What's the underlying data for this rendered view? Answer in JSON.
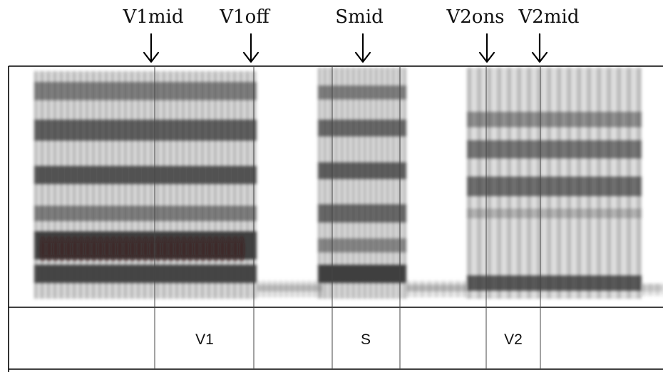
{
  "markers": [
    {
      "label": "V1mid"
    },
    {
      "label": "V1off"
    },
    {
      "label": "Smid"
    },
    {
      "label": "V2ons"
    },
    {
      "label": "V2mid"
    }
  ],
  "segments": [
    {
      "label": ""
    },
    {
      "label": "V1"
    },
    {
      "label": ""
    },
    {
      "label": "S"
    },
    {
      "label": ""
    },
    {
      "label": "V2"
    },
    {
      "label": ""
    }
  ],
  "colors": {
    "frame": "#000000",
    "divider": "#444444",
    "band": "#3a3a3a",
    "burst_dark": "#3a1010"
  }
}
